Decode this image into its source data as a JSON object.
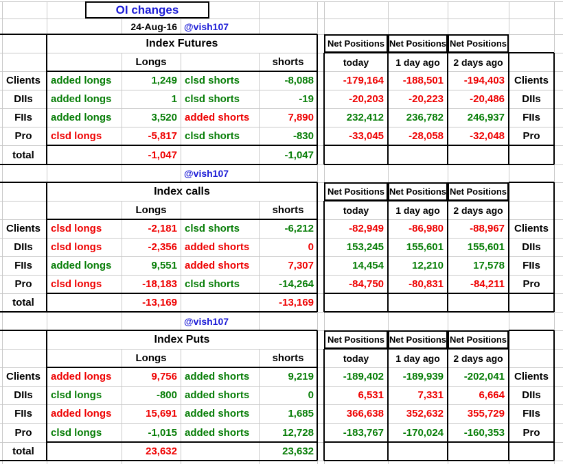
{
  "meta": {
    "title": "OI changes",
    "date": "24-Aug-16",
    "handle": "@vish107"
  },
  "colors": {
    "green": "#067d06",
    "red": "#ee0000",
    "blue": "#1b1bd6",
    "black": "#000000",
    "grid": "#c8c8c8"
  },
  "headers": {
    "longs": "Longs",
    "shorts": "shorts",
    "net_positions": "Net Positions",
    "periods": [
      "today",
      "1 day ago",
      "2 days ago"
    ],
    "total": "total"
  },
  "sections": [
    {
      "title": "Index Futures",
      "rows": [
        {
          "label": "Clients",
          "long_action": "added longs",
          "long_value": "1,249",
          "long_color": "green",
          "short_action": "clsd shorts",
          "short_value": "-8,088",
          "short_color": "green",
          "net": [
            "-179,164",
            "-188,501",
            "-194,403"
          ],
          "net_color": "red"
        },
        {
          "label": "DIIs",
          "long_action": "added longs",
          "long_value": "1",
          "long_color": "green",
          "short_action": "clsd shorts",
          "short_value": "-19",
          "short_color": "green",
          "net": [
            "-20,203",
            "-20,223",
            "-20,486"
          ],
          "net_color": "red"
        },
        {
          "label": "FIIs",
          "long_action": "added longs",
          "long_value": "3,520",
          "long_color": "green",
          "short_action": "added shorts",
          "short_value": "7,890",
          "short_color": "red",
          "net": [
            "232,412",
            "236,782",
            "246,937"
          ],
          "net_color": "green"
        },
        {
          "label": "Pro",
          "long_action": "clsd longs",
          "long_value": "-5,817",
          "long_color": "red",
          "short_action": "clsd shorts",
          "short_value": "-830",
          "short_color": "green",
          "net": [
            "-33,045",
            "-28,058",
            "-32,048"
          ],
          "net_color": "red"
        }
      ],
      "total": {
        "long": "-1,047",
        "long_color": "red",
        "short": "-1,047",
        "short_color": "green"
      }
    },
    {
      "title": "Index calls",
      "rows": [
        {
          "label": "Clients",
          "long_action": "clsd longs",
          "long_value": "-2,181",
          "long_color": "red",
          "short_action": "clsd shorts",
          "short_value": "-6,212",
          "short_color": "green",
          "net": [
            "-82,949",
            "-86,980",
            "-88,967"
          ],
          "net_color": "red"
        },
        {
          "label": "DIIs",
          "long_action": "clsd longs",
          "long_value": "-2,356",
          "long_color": "red",
          "short_action": "added shorts",
          "short_value": "0",
          "short_color": "red",
          "net": [
            "153,245",
            "155,601",
            "155,601"
          ],
          "net_color": "green"
        },
        {
          "label": "FIIs",
          "long_action": "added longs",
          "long_value": "9,551",
          "long_color": "green",
          "short_action": "added shorts",
          "short_value": "7,307",
          "short_color": "red",
          "net": [
            "14,454",
            "12,210",
            "17,578"
          ],
          "net_color": "green"
        },
        {
          "label": "Pro",
          "long_action": "clsd longs",
          "long_value": "-18,183",
          "long_color": "red",
          "short_action": "clsd shorts",
          "short_value": "-14,264",
          "short_color": "green",
          "net": [
            "-84,750",
            "-80,831",
            "-84,211"
          ],
          "net_color": "red"
        }
      ],
      "total": {
        "long": "-13,169",
        "long_color": "red",
        "short": "-13,169",
        "short_color": "red"
      }
    },
    {
      "title": "Index Puts",
      "rows": [
        {
          "label": "Clients",
          "long_action": "added longs",
          "long_value": "9,756",
          "long_color": "red",
          "short_action": "added shorts",
          "short_value": "9,219",
          "short_color": "green",
          "net": [
            "-189,402",
            "-189,939",
            "-202,041"
          ],
          "net_color": "green"
        },
        {
          "label": "DIIs",
          "long_action": "clsd longs",
          "long_value": "-800",
          "long_color": "green",
          "short_action": "added shorts",
          "short_value": "0",
          "short_color": "green",
          "net": [
            "6,531",
            "7,331",
            "6,664"
          ],
          "net_color": "red"
        },
        {
          "label": "FIIs",
          "long_action": "added longs",
          "long_value": "15,691",
          "long_color": "red",
          "short_action": "added shorts",
          "short_value": "1,685",
          "short_color": "green",
          "net": [
            "366,638",
            "352,632",
            "355,729"
          ],
          "net_color": "red"
        },
        {
          "label": "Pro",
          "long_action": "clsd longs",
          "long_value": "-1,015",
          "long_color": "green",
          "short_action": "added shorts",
          "short_value": "12,728",
          "short_color": "green",
          "net": [
            "-183,767",
            "-170,024",
            "-160,353"
          ],
          "net_color": "green"
        }
      ],
      "total": {
        "long": "23,632",
        "long_color": "red",
        "short": "23,632",
        "short_color": "green"
      }
    }
  ]
}
